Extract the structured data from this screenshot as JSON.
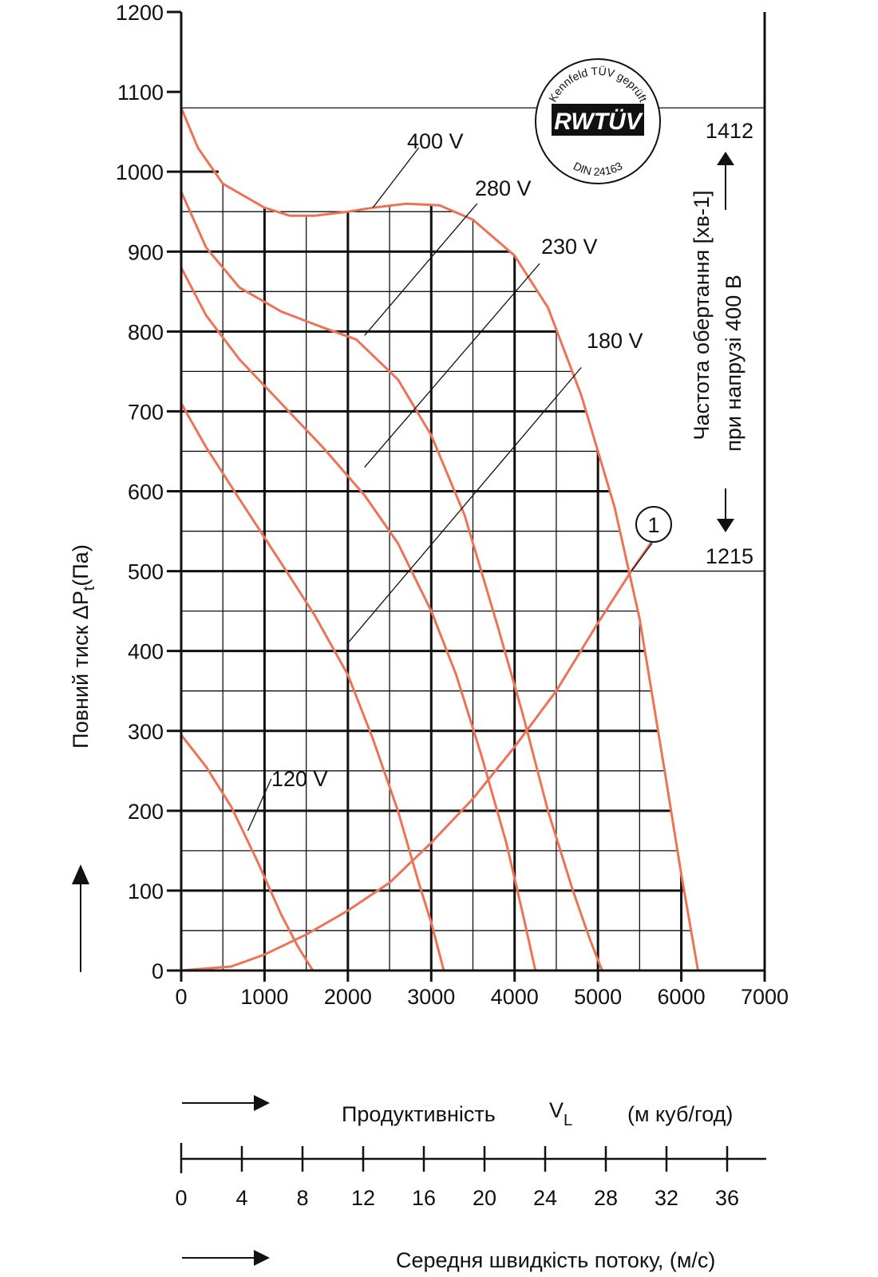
{
  "chart_data": {
    "type": "line",
    "ylabel_main": "Повний тиск ΔP",
    "ylabel_sub": "t",
    "ylabel_unit": "(Па)",
    "xlim": [
      0,
      7000
    ],
    "ylim": [
      0,
      1200
    ],
    "x_ticks": [
      "0",
      "1000",
      "2000",
      "3000",
      "4000",
      "5000",
      "6000",
      "7000"
    ],
    "y_ticks": [
      "0",
      "100",
      "200",
      "300",
      "400",
      "500",
      "600",
      "700",
      "800",
      "900",
      "1000",
      "1100",
      "1200"
    ],
    "x_label": "Продуктивність",
    "x_symbol": "V",
    "x_symbol_sub": "L",
    "x_unit": "(м куб/год)",
    "velocity_ticks": [
      "0",
      "4",
      "8",
      "12",
      "16",
      "20",
      "24",
      "28",
      "32",
      "36"
    ],
    "velocity_label": "Середня швидкість потоку, (м/с)",
    "right_label_1": "Частота обертання [хв-1]",
    "right_label_2": "при напрузі 400 В",
    "right_value_top": "1412",
    "right_value_bottom": "1215",
    "hline_top": 1080,
    "hline_bottom": 500,
    "series": [
      {
        "name": "400 V",
        "x": [
          0,
          200,
          500,
          1000,
          1300,
          1600,
          2000,
          2300,
          2700,
          3100,
          3500,
          4000,
          4400,
          4800,
          5200,
          5500,
          5800,
          6000,
          6200
        ],
        "y": [
          1080,
          1030,
          985,
          955,
          945,
          945,
          950,
          955,
          960,
          958,
          940,
          895,
          830,
          720,
          580,
          440,
          250,
          120,
          0
        ]
      },
      {
        "name": "280 V",
        "x": [
          0,
          300,
          700,
          1200,
          1700,
          2100,
          2600,
          3000,
          3400,
          3800,
          4100,
          4400,
          4700,
          4900,
          5050
        ],
        "y": [
          975,
          905,
          855,
          825,
          805,
          790,
          740,
          670,
          570,
          430,
          320,
          200,
          100,
          40,
          0
        ]
      },
      {
        "name": "230 V",
        "x": [
          0,
          300,
          700,
          1200,
          1700,
          2200,
          2600,
          3000,
          3300,
          3600,
          3900,
          4100,
          4250
        ],
        "y": [
          880,
          820,
          765,
          710,
          655,
          595,
          535,
          450,
          370,
          270,
          160,
          70,
          0
        ]
      },
      {
        "name": "180 V",
        "x": [
          0,
          300,
          700,
          1200,
          1600,
          2000,
          2300,
          2600,
          2850,
          3000,
          3150
        ],
        "y": [
          710,
          655,
          590,
          510,
          445,
          370,
          290,
          200,
          110,
          60,
          0
        ]
      },
      {
        "name": "120 V",
        "x": [
          0,
          300,
          600,
          900,
          1200,
          1400,
          1580
        ],
        "y": [
          295,
          255,
          205,
          140,
          70,
          30,
          0
        ]
      },
      {
        "name": "1",
        "x": [
          0,
          600,
          1000,
          1500,
          2000,
          2500,
          3000,
          3500,
          4000,
          4500,
          5000,
          5400,
          5800
        ],
        "y": [
          0,
          5,
          20,
          45,
          75,
          110,
          160,
          215,
          280,
          350,
          435,
          500,
          560
        ]
      }
    ]
  }
}
